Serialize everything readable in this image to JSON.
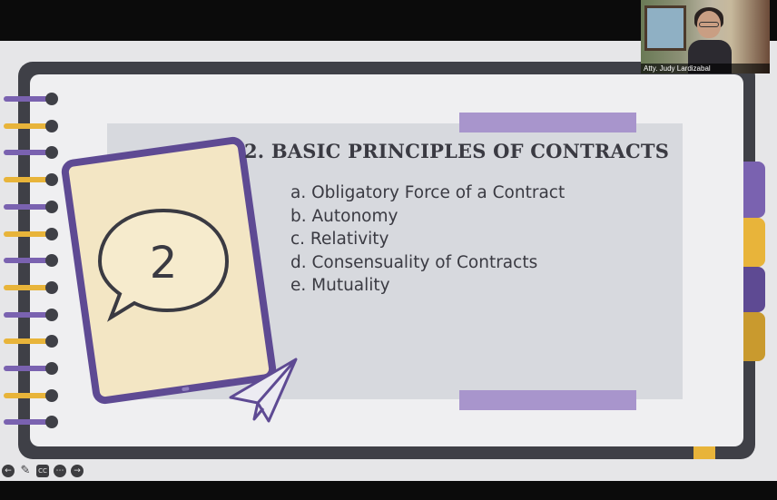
{
  "slide": {
    "title": "2. BASIC PRINCIPLES OF CONTRACTS",
    "number": "2",
    "principles": [
      "a. Obligatory Force of a Contract",
      "b. Autonomy",
      "c. Relativity",
      "d. Consensuality of Contracts",
      "e. Mutuality"
    ]
  },
  "webcam": {
    "participant_name": "Atty. Judy Lardizabal"
  },
  "controls": {
    "back_icon": "←",
    "pen_icon": "✎",
    "cc_label": "CC",
    "more_icon": "⋯",
    "forward_icon": "→"
  },
  "colors": {
    "purple": "#5e4a93",
    "lavender": "#a895cc",
    "gold": "#e8b43a",
    "dark": "#3f4047",
    "cream": "#f3e6c4"
  }
}
